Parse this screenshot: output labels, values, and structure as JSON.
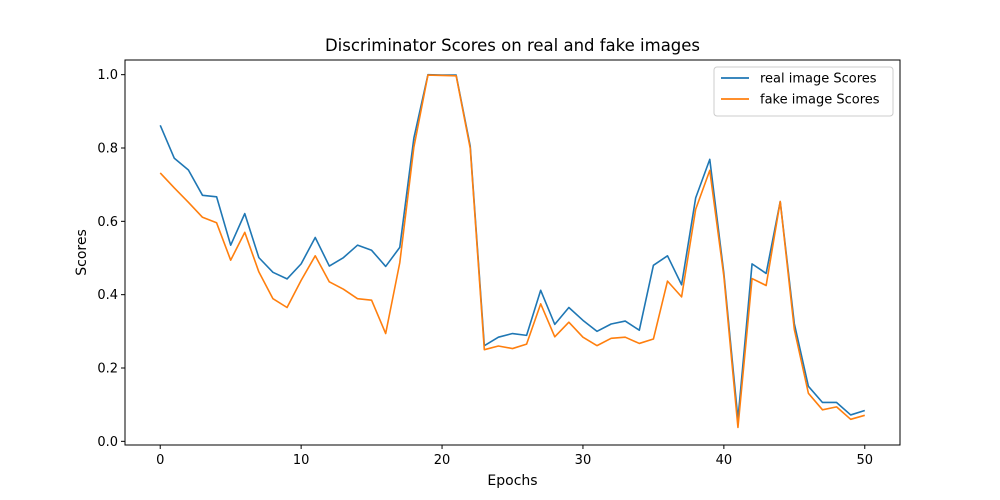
{
  "chart_data": {
    "type": "line",
    "title": "Discriminator Scores on real and fake images",
    "xlabel": "Epochs",
    "ylabel": "Scores",
    "xlim": [
      -2.5,
      52.5
    ],
    "ylim": [
      -0.01,
      1.04
    ],
    "xticks": [
      0,
      10,
      20,
      30,
      40,
      50
    ],
    "xtick_labels": [
      "0",
      "10",
      "20",
      "30",
      "40",
      "50"
    ],
    "yticks": [
      0.0,
      0.2,
      0.4,
      0.6,
      0.8,
      1.0
    ],
    "ytick_labels": [
      "0.0",
      "0.2",
      "0.4",
      "0.6",
      "0.8",
      "1.0"
    ],
    "grid": false,
    "legend_position": "top-right",
    "x": [
      0,
      1,
      2,
      3,
      4,
      5,
      6,
      7,
      8,
      9,
      10,
      11,
      12,
      13,
      14,
      15,
      16,
      17,
      18,
      19,
      20,
      21,
      22,
      23,
      24,
      25,
      26,
      27,
      28,
      29,
      30,
      31,
      32,
      33,
      34,
      35,
      36,
      37,
      38,
      39,
      40,
      41,
      42,
      43,
      44,
      45,
      46,
      47,
      48,
      49,
      50
    ],
    "series": [
      {
        "name": "real image Scores",
        "color": "#1f77b4",
        "values": [
          0.862,
          0.772,
          0.74,
          0.671,
          0.667,
          0.535,
          0.621,
          0.501,
          0.461,
          0.443,
          0.484,
          0.556,
          0.478,
          0.501,
          0.535,
          0.521,
          0.477,
          0.529,
          0.827,
          1.0,
          0.999,
          0.999,
          0.805,
          0.261,
          0.284,
          0.294,
          0.289,
          0.412,
          0.319,
          0.365,
          0.33,
          0.3,
          0.32,
          0.328,
          0.303,
          0.48,
          0.506,
          0.427,
          0.664,
          0.769,
          0.458,
          0.06,
          0.484,
          0.458,
          0.654,
          0.321,
          0.15,
          0.106,
          0.106,
          0.072,
          0.084
        ]
      },
      {
        "name": "fake image Scores",
        "color": "#ff7f0e",
        "values": [
          0.732,
          0.691,
          0.652,
          0.611,
          0.596,
          0.494,
          0.57,
          0.462,
          0.389,
          0.365,
          0.439,
          0.506,
          0.435,
          0.415,
          0.389,
          0.385,
          0.294,
          0.487,
          0.802,
          0.999,
          0.998,
          0.997,
          0.799,
          0.25,
          0.26,
          0.253,
          0.265,
          0.375,
          0.285,
          0.325,
          0.284,
          0.261,
          0.281,
          0.284,
          0.267,
          0.279,
          0.437,
          0.394,
          0.633,
          0.739,
          0.45,
          0.038,
          0.444,
          0.425,
          0.654,
          0.305,
          0.131,
          0.086,
          0.094,
          0.06,
          0.071
        ]
      }
    ]
  }
}
